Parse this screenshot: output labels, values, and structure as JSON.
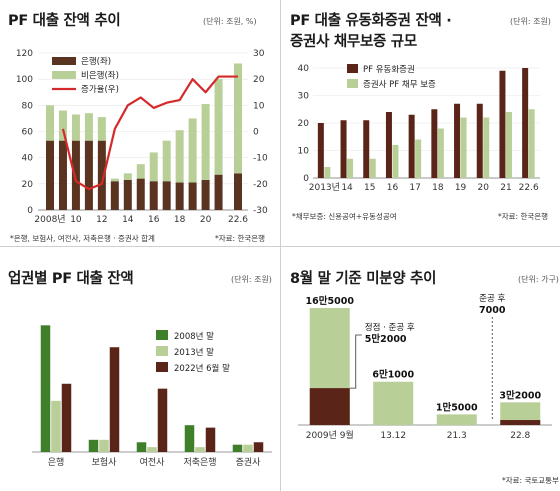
{
  "panel1": {
    "title": "PF 대출 잔액 추이",
    "unit": "(단위: 조원, %)",
    "note": "*은행, 보험사, 여전사, 저축은행 · 증권사 합계",
    "source": "*자료: 한국은행",
    "legend": [
      "은행(좌)",
      "비은행(좌)",
      "증가율(우)"
    ]
  },
  "panel2": {
    "title_line1": "PF 대출 유동화증권 잔액 ·",
    "title_line2": "증권사 채무보증 규모",
    "unit": "(단위: 조원)",
    "note": "*채무보증: 신용공여+유동성공여",
    "source": "*자료: 한국은행",
    "legend": [
      "PF 유동화증권",
      "증권사 PF 채무 보증"
    ]
  },
  "panel3": {
    "title": "업권별 PF 대출 잔액",
    "unit": "(단위: 조원)",
    "legend": [
      "2008년 말",
      "2013년 말",
      "2022년 6월 말"
    ]
  },
  "panel4": {
    "title": "8월 말 기준 미분양 추이",
    "unit": "(단위: 가구)",
    "source": "*자료: 국토교통부",
    "annot_peak": "정점 · 준공 후",
    "annot_peak_value": "5만2000",
    "annot_last": "준공 후",
    "annot_last_value": "7000"
  },
  "chart_data": [
    {
      "type": "bar",
      "title": "PF 대출 잔액 추이",
      "x": [
        2008,
        2009,
        2010,
        2011,
        2012,
        2013,
        2014,
        2015,
        2016,
        2017,
        2018,
        2019,
        2020,
        2021,
        2022.5
      ],
      "x_tick_labels": [
        "2008년",
        "10",
        "12",
        "14",
        "16",
        "18",
        "20",
        "22.6"
      ],
      "x_tick_positions": [
        2008,
        2010,
        2012,
        2014,
        2016,
        2018,
        2020,
        2022.5
      ],
      "series": [
        {
          "name": "은행(좌)",
          "kind": "bar",
          "color": "#5a3420",
          "values": [
            53,
            53,
            53,
            53,
            53,
            22,
            23,
            24,
            22,
            22,
            21,
            21,
            23,
            27,
            28
          ]
        },
        {
          "name": "비은행(좌)",
          "kind": "bar",
          "color": "#b9cf98",
          "values": [
            27,
            23,
            20,
            21,
            18,
            2,
            5,
            11,
            22,
            31,
            40,
            49,
            58,
            73,
            84
          ]
        },
        {
          "name": "증가율(우)",
          "kind": "line",
          "color": "#d42a2a",
          "axis": "right",
          "values": [
            null,
            1,
            -19,
            -22,
            -20,
            1,
            10,
            13,
            9,
            11,
            12,
            20,
            15,
            21,
            21
          ]
        }
      ],
      "y_left": {
        "range": [
          0,
          120
        ],
        "ticks": [
          0,
          20,
          40,
          60,
          80,
          100,
          120
        ]
      },
      "y_right": {
        "range": [
          -30,
          30
        ],
        "ticks": [
          -30,
          -20,
          -10,
          0,
          10,
          20,
          30
        ]
      }
    },
    {
      "type": "bar",
      "title": "PF 대출 유동화증권 잔액 · 증권사 채무보증 규모",
      "categories": [
        "2013년",
        "14",
        "15",
        "16",
        "17",
        "18",
        "19",
        "20",
        "21",
        "22.6"
      ],
      "series": [
        {
          "name": "PF 유동화증권",
          "color": "#5a2418",
          "values": [
            20,
            21,
            21,
            24,
            23,
            25,
            27,
            27,
            39,
            40
          ]
        },
        {
          "name": "증권사 PF 채무 보증",
          "color": "#b9cf98",
          "values": [
            4,
            7,
            7,
            12,
            14,
            18,
            22,
            22,
            24,
            25
          ]
        }
      ],
      "y": {
        "range": [
          0,
          40
        ],
        "ticks": [
          0,
          10,
          20,
          30,
          40
        ]
      }
    },
    {
      "type": "bar",
      "title": "업권별 PF 대출 잔액",
      "categories": [
        "은행",
        "보험사",
        "여전사",
        "저축은행",
        "증권사"
      ],
      "series": [
        {
          "name": "2008년 말",
          "color": "#3f7f2a",
          "values": [
            52,
            5,
            4,
            11,
            3
          ]
        },
        {
          "name": "2013년 말",
          "color": "#b9cf98",
          "values": [
            21,
            5,
            2,
            2,
            3
          ]
        },
        {
          "name": "2022년 6월 말",
          "color": "#5a2418",
          "values": [
            28,
            43,
            26,
            10,
            4
          ]
        }
      ]
    },
    {
      "type": "bar",
      "title": "8월 말 기준 미분양 추이",
      "categories": [
        "2009년 9월",
        "13.12",
        "21.3",
        "22.8"
      ],
      "series": [
        {
          "name": "미분양",
          "color": "#b9cf98",
          "values": [
            165000,
            61000,
            15000,
            32000
          ],
          "labels": [
            "16만5000",
            "6만1000",
            "1만5000",
            "3만2000"
          ]
        },
        {
          "name": "준공 후",
          "color": "#5a2418",
          "values": [
            52000,
            null,
            null,
            7000
          ]
        }
      ]
    }
  ]
}
